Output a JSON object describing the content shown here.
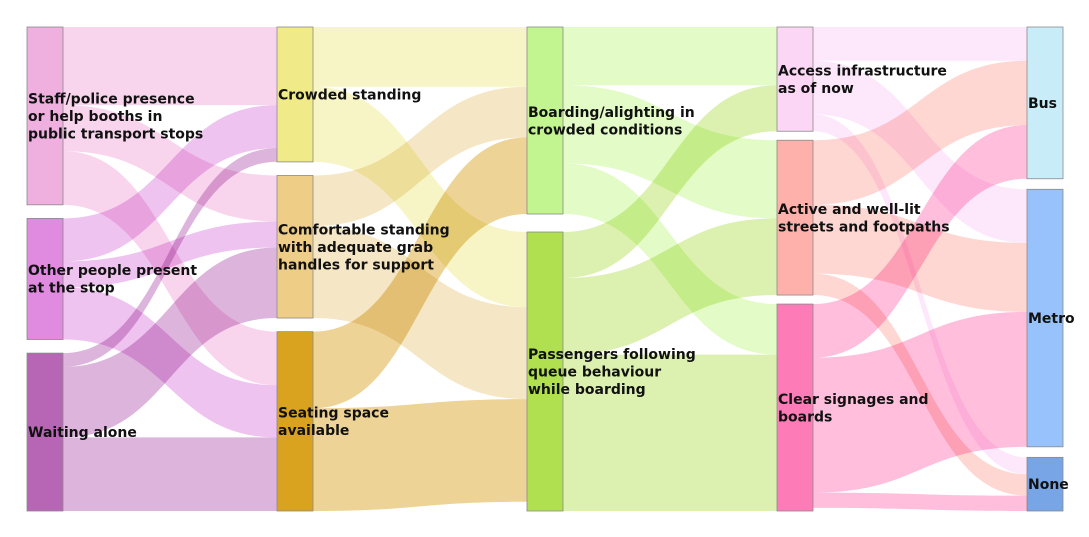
{
  "chart_data": {
    "type": "sankey",
    "title": "",
    "columns": [
      [
        {
          "id": "staff",
          "label": [
            "Staff/police presence",
            "or help booths in",
            "public transport stops"
          ],
          "color": "#f0b0df"
        },
        {
          "id": "other",
          "label": [
            "Other people present",
            "at the stop"
          ],
          "color": "#e08ae0"
        },
        {
          "id": "alone",
          "label": [
            "Waiting alone"
          ],
          "color": "#b766b5"
        }
      ],
      [
        {
          "id": "crowded",
          "label": [
            "Crowded standing"
          ],
          "color": "#f0eb88"
        },
        {
          "id": "comfortable",
          "label": [
            "Comfortable standing",
            "with adequate grab",
            "handles for support"
          ],
          "color": "#eecd87"
        },
        {
          "id": "seating",
          "label": [
            "Seating space",
            "available"
          ],
          "color": "#d9a320"
        }
      ],
      [
        {
          "id": "boarding",
          "label": [
            "Boarding/alighting in",
            "crowded conditions"
          ],
          "color": "#c2f58f"
        },
        {
          "id": "queue",
          "label": [
            "Passengers following",
            "queue behaviour",
            "while boarding"
          ],
          "color": "#b0e050"
        }
      ],
      [
        {
          "id": "access",
          "label": [
            "Access infrastructure",
            "as of now"
          ],
          "color": "#fbd6f5"
        },
        {
          "id": "lit",
          "label": [
            "Active and well-lit",
            "streets and footpaths"
          ],
          "color": "#feb1aa"
        },
        {
          "id": "signage",
          "label": [
            "Clear signages and",
            "boards"
          ],
          "color": "#fd7cb8"
        }
      ],
      [
        {
          "id": "bus",
          "label": [
            "Bus"
          ],
          "color": "#c8ecf8"
        },
        {
          "id": "metro",
          "label": [
            "Metro"
          ],
          "color": "#98c2fb"
        },
        {
          "id": "none",
          "label": [
            "None"
          ],
          "color": "#77a5e5"
        }
      ]
    ],
    "links": [
      {
        "source": "staff",
        "target": "crowded",
        "value": 51,
        "color": "#f6cbe9"
      },
      {
        "source": "staff",
        "target": "comfortable",
        "value": 30,
        "color": "#f6cbe9"
      },
      {
        "source": "staff",
        "target": "seating",
        "value": 35,
        "color": "#f6cbe9"
      },
      {
        "source": "other",
        "target": "crowded",
        "value": 28,
        "color": "#ebb4eb"
      },
      {
        "source": "other",
        "target": "comfortable",
        "value": 17,
        "color": "#ebb4eb"
      },
      {
        "source": "other",
        "target": "seating",
        "value": 34,
        "color": "#ebb4eb"
      },
      {
        "source": "alone",
        "target": "crowded",
        "value": 9,
        "color": "#d4a3d3"
      },
      {
        "source": "alone",
        "target": "comfortable",
        "value": 46,
        "color": "#d4a3d3"
      },
      {
        "source": "alone",
        "target": "seating",
        "value": 48,
        "color": "#d4a3d3"
      },
      {
        "source": "crowded",
        "target": "boarding",
        "value": 39,
        "color": "#f5f3b8"
      },
      {
        "source": "crowded",
        "target": "queue",
        "value": 49,
        "color": "#f5f3b8"
      },
      {
        "source": "comfortable",
        "target": "boarding",
        "value": 33,
        "color": "#f3e1b6"
      },
      {
        "source": "comfortable",
        "target": "queue",
        "value": 60,
        "color": "#f3e1b6"
      },
      {
        "source": "seating",
        "target": "boarding",
        "value": 50,
        "color": "#e8c87a"
      },
      {
        "source": "seating",
        "target": "queue",
        "value": 67,
        "color": "#e8c87a"
      },
      {
        "source": "boarding",
        "target": "access",
        "value": 38,
        "color": "#dcfab8"
      },
      {
        "source": "boarding",
        "target": "lit",
        "value": 51,
        "color": "#dcfab8"
      },
      {
        "source": "boarding",
        "target": "signage",
        "value": 33,
        "color": "#dcfab8"
      },
      {
        "source": "queue",
        "target": "access",
        "value": 30,
        "color": "#d3ee9c"
      },
      {
        "source": "queue",
        "target": "lit",
        "value": 50,
        "color": "#d3ee9c"
      },
      {
        "source": "queue",
        "target": "signage",
        "value": 102,
        "color": "#d3ee9c"
      },
      {
        "source": "access",
        "target": "bus",
        "value": 22,
        "color": "#fde2fa"
      },
      {
        "source": "access",
        "target": "metro",
        "value": 35,
        "color": "#fde2fa"
      },
      {
        "source": "access",
        "target": "none",
        "value": 11,
        "color": "#fde2fa"
      },
      {
        "source": "lit",
        "target": "bus",
        "value": 42,
        "color": "#fecdc8"
      },
      {
        "source": "lit",
        "target": "metro",
        "value": 45,
        "color": "#fecdc8"
      },
      {
        "source": "lit",
        "target": "none",
        "value": 14,
        "color": "#fecdc8"
      },
      {
        "source": "signage",
        "target": "bus",
        "value": 35,
        "color": "#feaed3"
      },
      {
        "source": "signage",
        "target": "metro",
        "value": 88,
        "color": "#feaed3"
      },
      {
        "source": "signage",
        "target": "none",
        "value": 10,
        "color": "#feaed3"
      }
    ]
  }
}
